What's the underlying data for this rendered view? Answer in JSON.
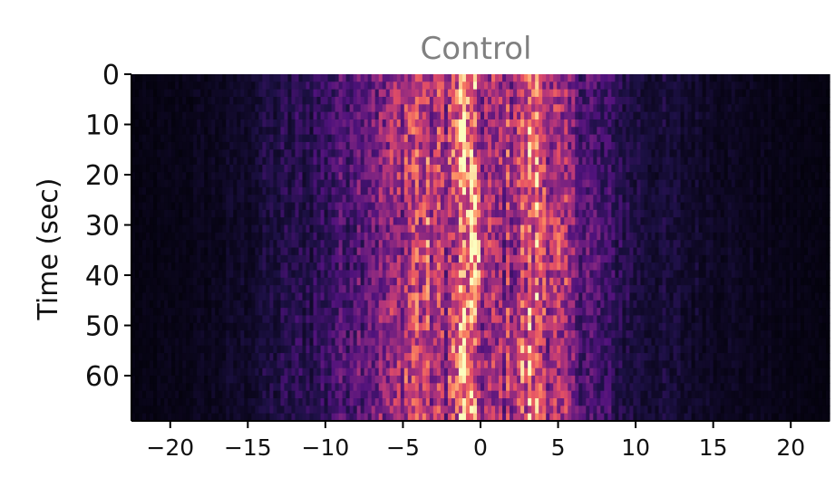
{
  "chart_data": {
    "type": "heatmap",
    "title": "Control",
    "title_color": "#808080",
    "xlabel": "",
    "ylabel": "Time (sec)",
    "xlim": [
      -22.5,
      22.5
    ],
    "ylim": [
      69,
      0
    ],
    "x_ticks": [
      -20,
      -15,
      -10,
      -5,
      0,
      5,
      10,
      15,
      20
    ],
    "x_tick_labels": [
      "−20",
      "−15",
      "−10",
      "−5",
      "0",
      "5",
      "10",
      "15",
      "20"
    ],
    "y_ticks": [
      0,
      10,
      20,
      30,
      40,
      50,
      60
    ],
    "y_tick_labels": [
      "0",
      "10",
      "20",
      "30",
      "40",
      "50",
      "60"
    ],
    "colormap": "magma",
    "intensity_profile": {
      "x": [
        -22.5,
        -20,
        -17,
        -15,
        -14,
        -12,
        -10,
        -9,
        -8,
        -7,
        -6,
        -5,
        -4.5,
        -4,
        -3,
        -2,
        -1.5,
        -1,
        -0.5,
        0,
        1,
        2,
        3,
        3.5,
        4,
        5,
        6,
        7,
        8,
        9,
        10,
        11,
        13,
        15,
        17,
        20,
        22.5
      ],
      "values": [
        0.03,
        0.04,
        0.06,
        0.09,
        0.12,
        0.16,
        0.2,
        0.27,
        0.34,
        0.38,
        0.42,
        0.5,
        0.6,
        0.62,
        0.54,
        0.52,
        0.65,
        0.9,
        0.86,
        0.52,
        0.45,
        0.52,
        0.66,
        0.74,
        0.66,
        0.5,
        0.38,
        0.3,
        0.22,
        0.18,
        0.14,
        0.12,
        0.1,
        0.08,
        0.06,
        0.04,
        0.03
      ]
    }
  }
}
